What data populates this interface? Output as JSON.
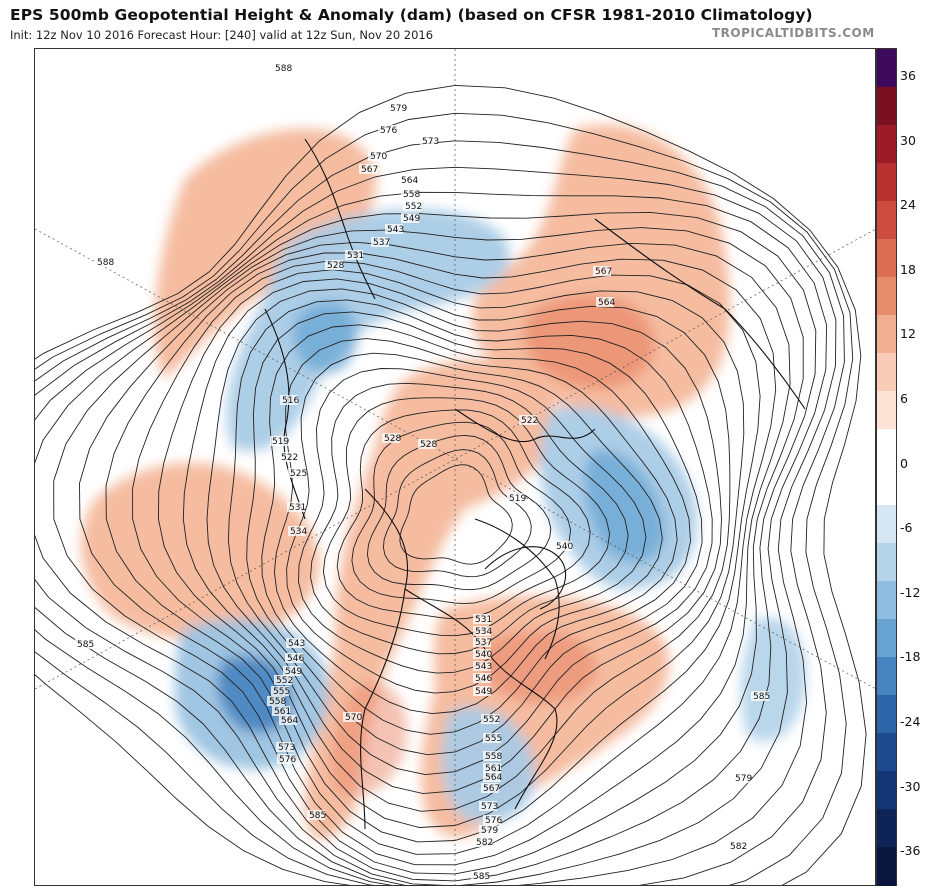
{
  "header": {
    "title": "EPS 500mb Geopotential Height & Anomaly (dam) (based on CFSR 1981-2010 Climatology)",
    "subtitle": "Init: 12z Nov 10 2016   Forecast Hour: [240]   valid at 12z Sun, Nov 20 2016",
    "brand": "TROPICALTIDBITS.COM"
  },
  "colorbar": {
    "ticks": [
      "36",
      "30",
      "24",
      "18",
      "12",
      "6",
      "0",
      "-6",
      "-12",
      "-18",
      "-24",
      "-30",
      "-36"
    ],
    "colors": [
      "#3d0a5c",
      "#7a1020",
      "#9c1b26",
      "#b8302f",
      "#cc4d3f",
      "#dc6e54",
      "#e88c6e",
      "#f2ae92",
      "#f8ccb6",
      "#fbe3d6",
      "#ffffff",
      "#ffffff",
      "#d6e7f3",
      "#b5d4ea",
      "#8fbddf",
      "#67a2d1",
      "#4584be",
      "#2c66a8",
      "#1d4a8e",
      "#153674",
      "#0f2456",
      "#0a163d"
    ]
  },
  "contours": {
    "labels": [
      "588",
      "579",
      "576",
      "573",
      "570",
      "567",
      "564",
      "558",
      "552",
      "549",
      "543",
      "537",
      "531",
      "528",
      "588",
      "516",
      "519",
      "522",
      "525",
      "531",
      "534",
      "528",
      "522",
      "519",
      "567",
      "564",
      "543",
      "546",
      "549",
      "552",
      "555",
      "558",
      "561",
      "564",
      "573",
      "576",
      "570",
      "585",
      "585",
      "531",
      "534",
      "537",
      "540",
      "543",
      "546",
      "549",
      "552",
      "555",
      "558",
      "561",
      "564",
      "567",
      "573",
      "576",
      "579",
      "582",
      "585",
      "579",
      "582",
      "585",
      "528",
      "540",
      "522"
    ]
  }
}
